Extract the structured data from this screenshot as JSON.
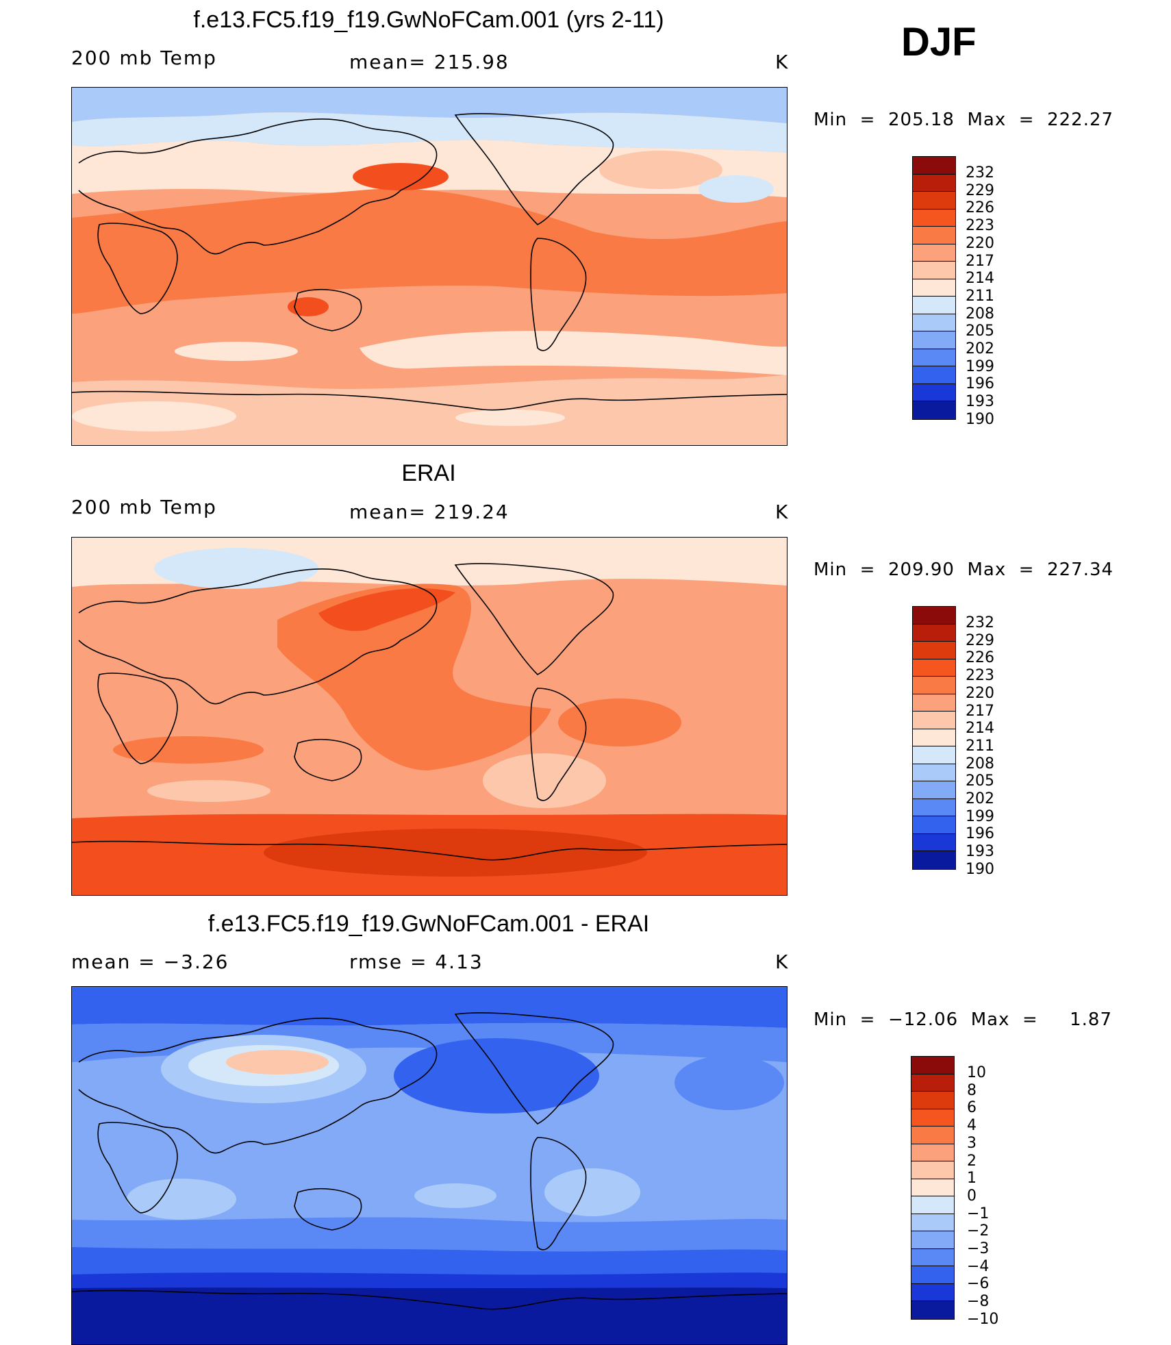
{
  "season": "DJF",
  "panels": [
    {
      "title": "f.e13.FC5.f19_f19.GwNoFCam.001 (yrs 2-11)",
      "left_label": "200 mb Temp",
      "center_label": "mean=  215.98",
      "units": "K",
      "minmax": "Min  =  205.18  Max  =  222.27",
      "colorbar_labels": [
        "232",
        "229",
        "226",
        "223",
        "220",
        "217",
        "214",
        "211",
        "208",
        "205",
        "202",
        "199",
        "196",
        "193",
        "190"
      ]
    },
    {
      "title": "ERAI",
      "left_label": "200 mb Temp",
      "center_label": "mean=  219.24",
      "units": "K",
      "minmax": "Min  =  209.90  Max  =  227.34",
      "colorbar_labels": [
        "232",
        "229",
        "226",
        "223",
        "220",
        "217",
        "214",
        "211",
        "208",
        "205",
        "202",
        "199",
        "196",
        "193",
        "190"
      ]
    },
    {
      "title": "f.e13.FC5.f19_f19.GwNoFCam.001 - ERAI",
      "left_label": "mean  =    −3.26",
      "center_label": "rmse  =     4.13",
      "units": "K",
      "minmax": "Min  =  −12.06  Max  =     1.87",
      "colorbar_labels": [
        "10",
        "8",
        "6",
        "4",
        "3",
        "2",
        "1",
        "0",
        "−1",
        "−2",
        "−3",
        "−4",
        "−6",
        "−8",
        "−10"
      ]
    }
  ],
  "colorbar_colors": [
    "#8b0a0a",
    "#b81e0a",
    "#dd3a0d",
    "#f5551f",
    "#f97a45",
    "#fba27c",
    "#fcc7ab",
    "#fee7d7",
    "#d4e8fa",
    "#aacbfa",
    "#82aaf7",
    "#5a88f4",
    "#3362ef",
    "#1a38d8",
    "#0a1a9e"
  ],
  "map_colors": {
    "t_warm3": "#f24e1e",
    "t_warm2": "#f97a45",
    "t_warm1": "#fba27c",
    "t_neutral": "#fcc7ab",
    "t_light": "#fee7d7",
    "t_cool": "#d4e8fa",
    "t_cool2": "#aacbfa",
    "d_dark": "#0a1a9e",
    "d_mid": "#1a38d8",
    "d_base": "#3362ef",
    "d_light": "#5a88f4",
    "d_lighter": "#82aaf7",
    "d_pale": "#aacbfa"
  }
}
